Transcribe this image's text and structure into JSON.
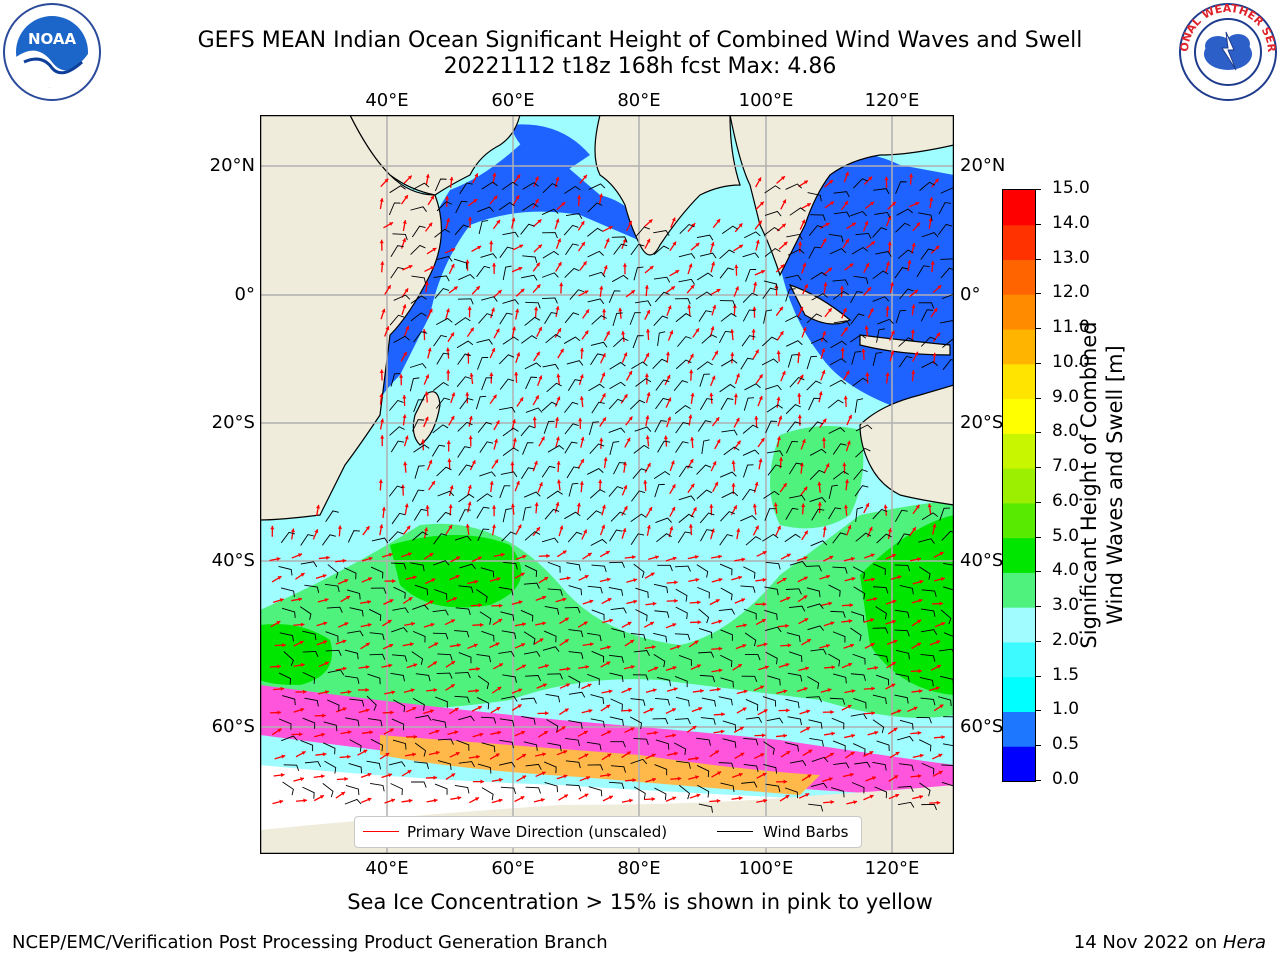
{
  "header": {
    "title_line1": "GEFS MEAN Indian Ocean Significant Height of Combined Wind Waves and Swell",
    "title_line2": "20221112 t18z 168h fcst   Max: 4.86"
  },
  "logos": {
    "left": {
      "icon": "noaa-logo-icon",
      "text": "NOAA"
    },
    "right": {
      "icon": "national-weather-service-logo-icon",
      "text": "NATIONAL WEATHER SERVICE"
    }
  },
  "map": {
    "region": "Indian Ocean",
    "lon_ticks": [
      "40°E",
      "60°E",
      "80°E",
      "100°E",
      "120°E"
    ],
    "lat_ticks_left": [
      "20°N",
      "0°",
      "20°S",
      "40°S",
      "60°S"
    ],
    "lat_ticks_right": [
      "20°N",
      "0°",
      "20°S",
      "40°S",
      "60°S"
    ],
    "colors": {
      "land": "#efecdc",
      "ocean_low": "#1e63ff",
      "ocean_mid": "#9ffcff",
      "ocean_high": "#4ef27c",
      "ice": "#ff55dd"
    }
  },
  "legend": {
    "wave_direction": "Primary Wave Direction (unscaled)",
    "wind_barbs": "Wind Barbs",
    "wave_color": "#ff0000",
    "barb_color": "#000000"
  },
  "colorbar": {
    "label_line1": "Significant Height of Combined",
    "label_line2": "Wind Waves and Swell [m]",
    "ticks": [
      "0.0",
      "0.5",
      "1.0",
      "1.5",
      "2.0",
      "3.0",
      "4.0",
      "5.0",
      "6.0",
      "7.0",
      "8.0",
      "9.0",
      "10.0",
      "11.0",
      "12.0",
      "13.0",
      "14.0",
      "15.0"
    ],
    "colors": [
      "#0000ff",
      "#1e78ff",
      "#00ffff",
      "#3cfaff",
      "#a0fcff",
      "#4ef27c",
      "#00e600",
      "#58ea00",
      "#9cef00",
      "#c8f500",
      "#ffff00",
      "#ffe400",
      "#ffb400",
      "#ff8c00",
      "#ff6400",
      "#ff3200",
      "#ff0000"
    ]
  },
  "notes": {
    "sea_ice": "Sea Ice Concentration > 15% is shown in pink to yellow"
  },
  "footer": {
    "left": "NCEP/EMC/Verification Post Processing Product Generation Branch",
    "date": "14 Nov 2022 on ",
    "host": "Hera"
  }
}
